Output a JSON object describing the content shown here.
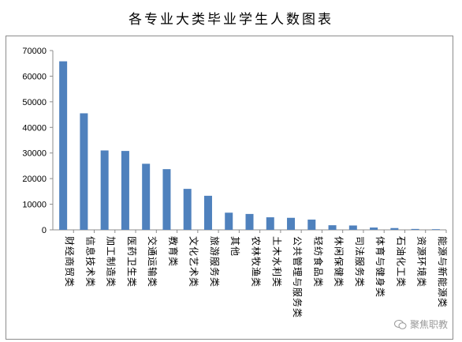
{
  "title": "各专业大类毕业学生人数图表",
  "watermark": "聚焦职教",
  "colors": {
    "bar": "#4f81bd",
    "axis": "#8c8c8c"
  },
  "chart_data": {
    "type": "bar",
    "title": "各专业大类毕业学生人数图表",
    "categories": [
      "财经商贸类",
      "信息技术类",
      "加工制造类",
      "医药卫生类",
      "交通运输类",
      "教育类",
      "文化艺术类",
      "旅游服务类",
      "其他",
      "农林牧渔类",
      "土木水利类",
      "公共管理与服务类",
      "轻纺食品类",
      "休闲保健类",
      "司法服务类",
      "体育与健身类",
      "石油化工类",
      "资源环境类",
      "能源与新能源类"
    ],
    "values": [
      65800,
      45500,
      31000,
      30800,
      25800,
      23700,
      16000,
      13300,
      6700,
      6200,
      4900,
      4700,
      4000,
      1800,
      1700,
      900,
      700,
      350,
      250
    ],
    "ylim": [
      0,
      70000
    ],
    "yticks": [
      0,
      10000,
      20000,
      30000,
      40000,
      50000,
      60000,
      70000
    ],
    "xlabel": "",
    "ylabel": "",
    "grid": false,
    "legend": "none"
  }
}
